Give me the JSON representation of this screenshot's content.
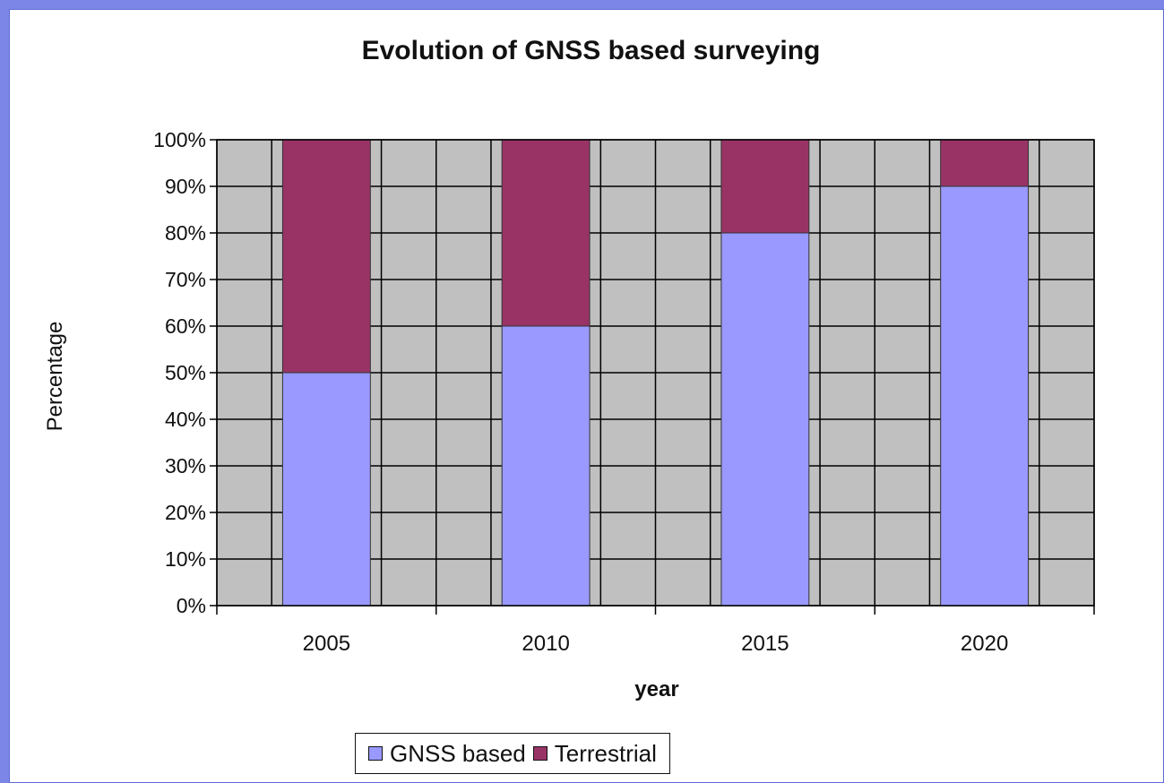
{
  "chart_data": {
    "type": "bar",
    "stacked": true,
    "title": "Evolution of GNSS based surveying",
    "xlabel": "year",
    "ylabel": "Percentage",
    "categories": [
      "2005",
      "2010",
      "2015",
      "2020"
    ],
    "series": [
      {
        "name": "GNSS based",
        "values": [
          50,
          60,
          80,
          90
        ],
        "color": "#9999ff"
      },
      {
        "name": "Terrestrial",
        "values": [
          50,
          40,
          20,
          10
        ],
        "color": "#993366"
      }
    ],
    "y_ticks": [
      "0%",
      "10%",
      "20%",
      "30%",
      "40%",
      "50%",
      "60%",
      "70%",
      "80%",
      "90%",
      "100%"
    ],
    "ylim": [
      0,
      100
    ],
    "grid": true,
    "plot_background": "#c0c0c0",
    "legend_position": "bottom"
  }
}
